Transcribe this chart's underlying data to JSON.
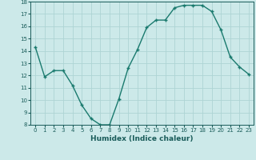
{
  "x": [
    0,
    1,
    2,
    3,
    4,
    5,
    6,
    7,
    8,
    9,
    10,
    11,
    12,
    13,
    14,
    15,
    16,
    17,
    18,
    19,
    20,
    21,
    22,
    23
  ],
  "y": [
    14.3,
    11.9,
    12.4,
    12.4,
    11.2,
    9.6,
    8.5,
    8.0,
    8.0,
    10.1,
    12.6,
    14.1,
    15.9,
    16.5,
    16.5,
    17.5,
    17.7,
    17.7,
    17.7,
    17.2,
    15.7,
    13.5,
    12.7,
    12.1
  ],
  "xlabel": "Humidex (Indice chaleur)",
  "ylim": [
    8,
    18
  ],
  "xlim_min": -0.5,
  "xlim_max": 23.5,
  "yticks": [
    8,
    9,
    10,
    11,
    12,
    13,
    14,
    15,
    16,
    17,
    18
  ],
  "xticks": [
    0,
    1,
    2,
    3,
    4,
    5,
    6,
    7,
    8,
    9,
    10,
    11,
    12,
    13,
    14,
    15,
    16,
    17,
    18,
    19,
    20,
    21,
    22,
    23
  ],
  "line_color": "#1a7a6e",
  "marker_color": "#1a7a6e",
  "bg_color": "#cce9e9",
  "grid_color": "#aed4d4",
  "label_color": "#1a5c5a",
  "tick_color": "#1a5c5a",
  "tick_fontsize": 5,
  "xlabel_fontsize": 6.5
}
